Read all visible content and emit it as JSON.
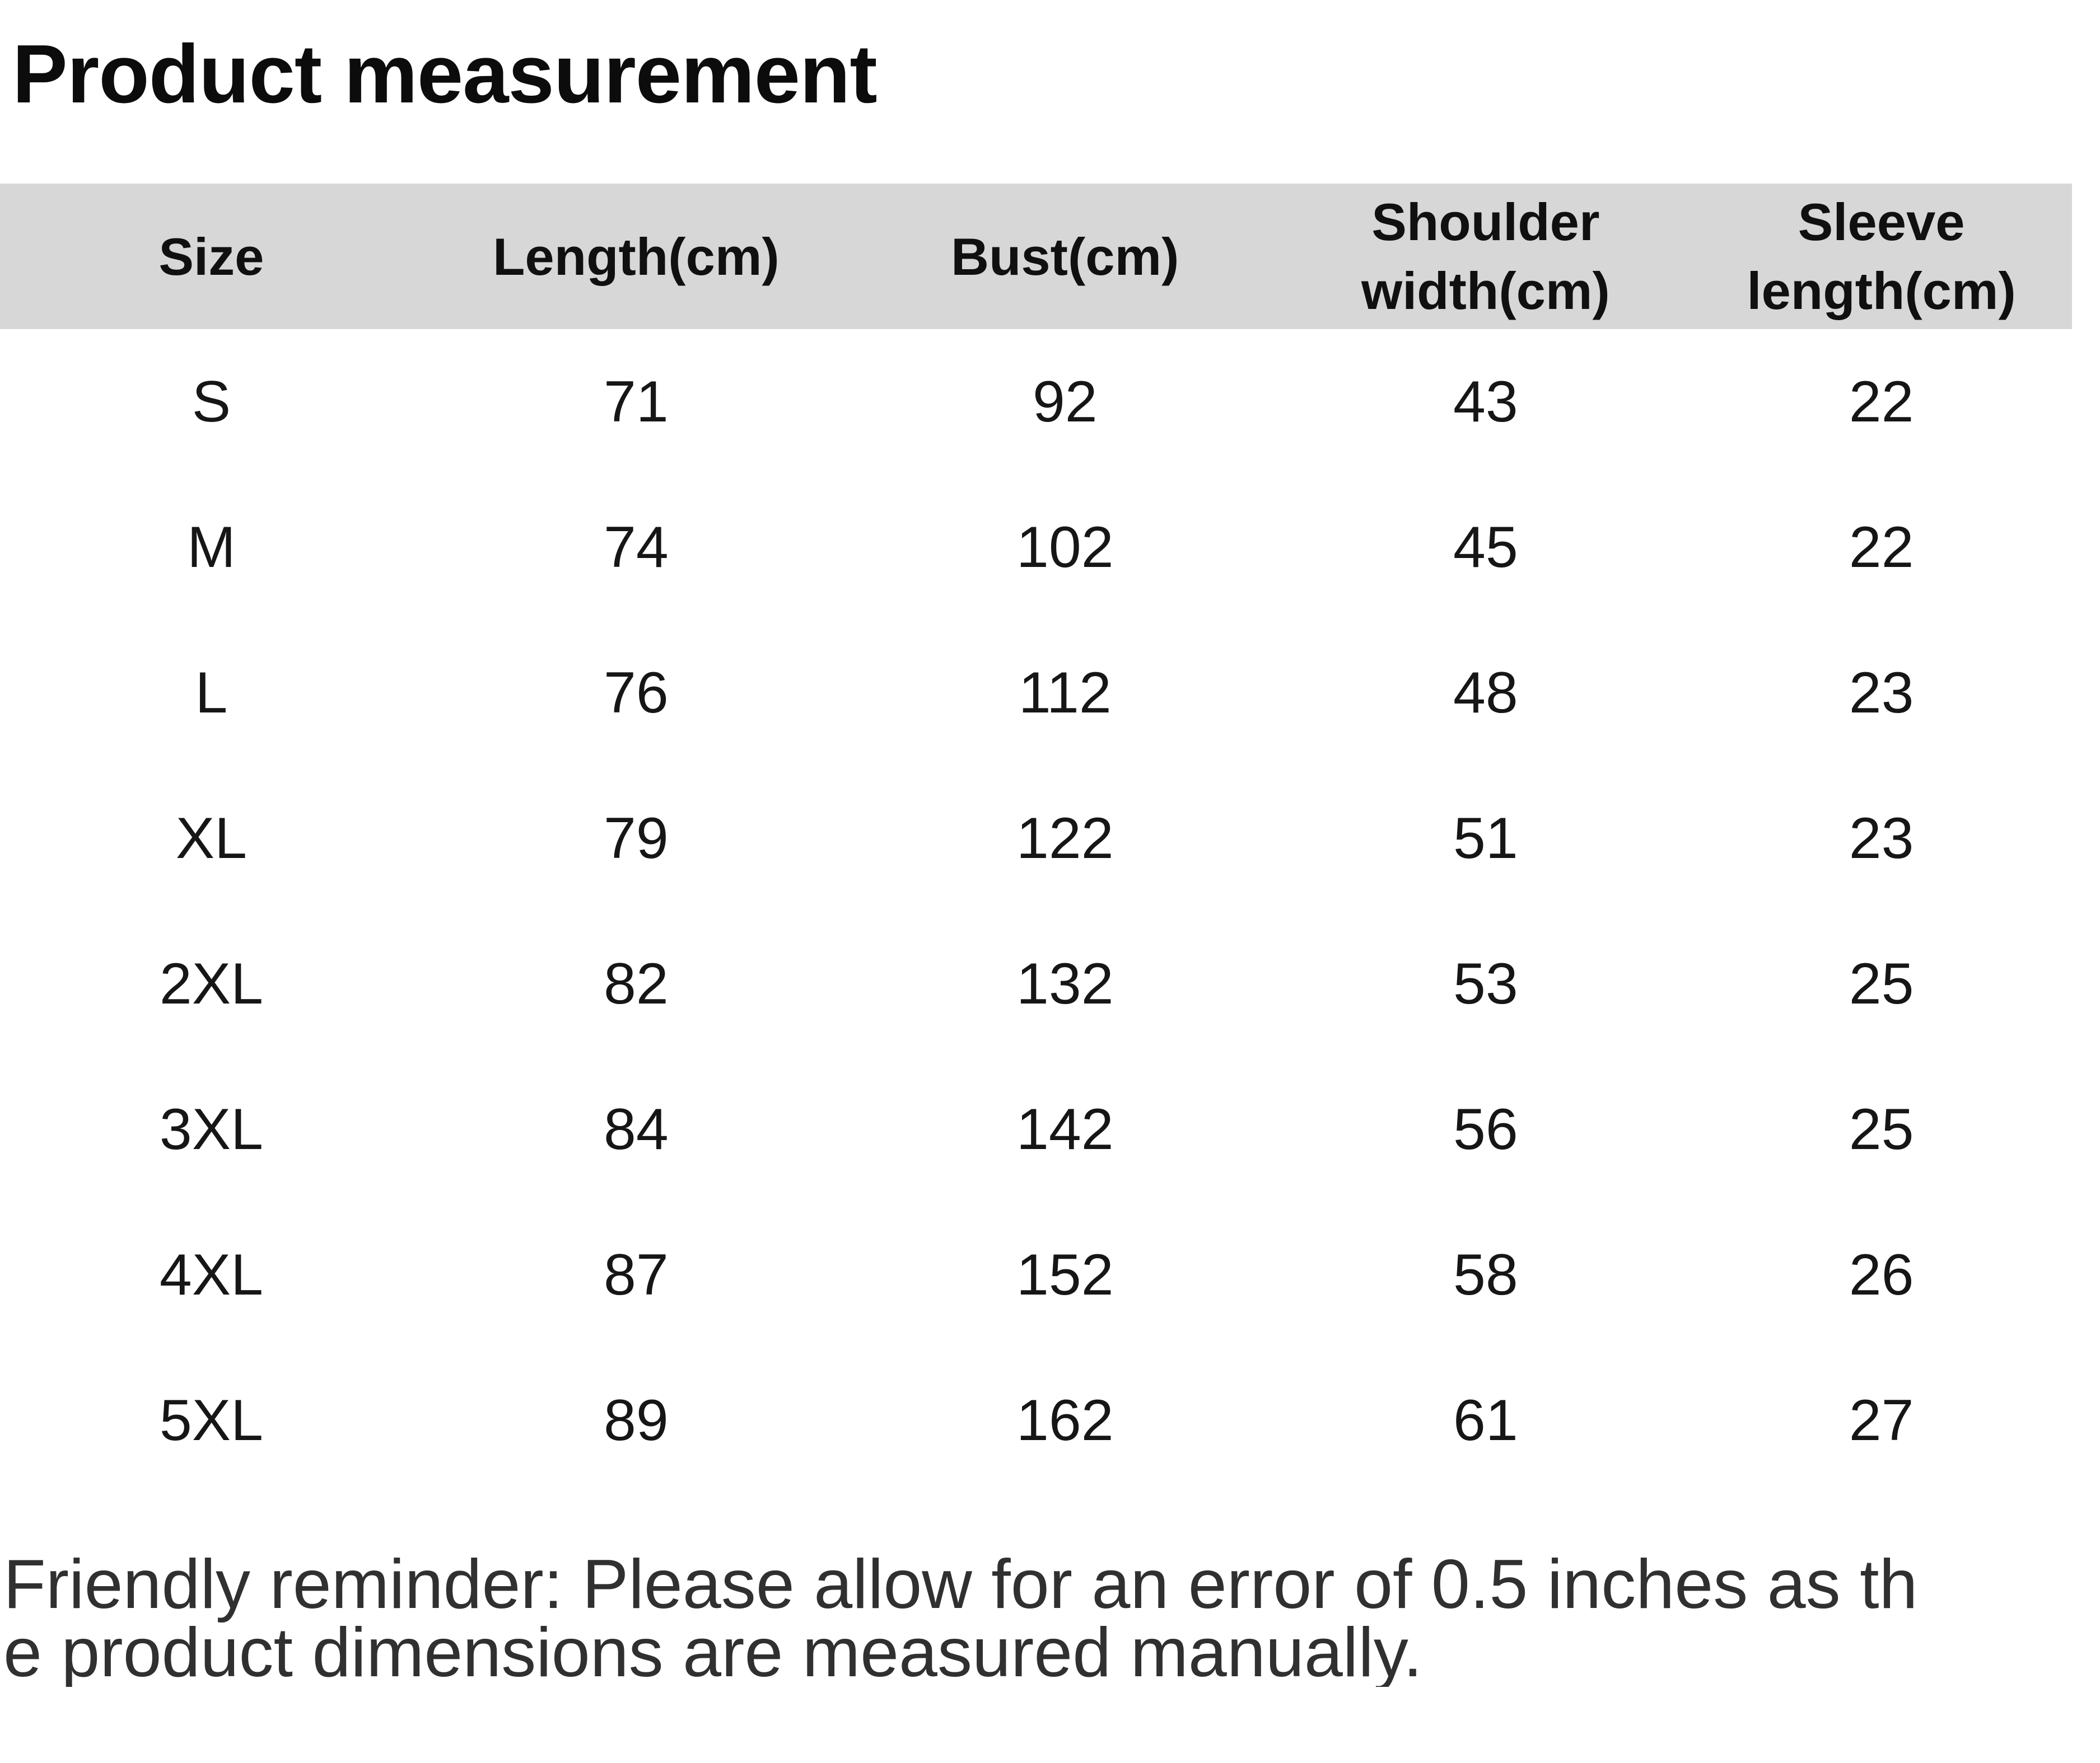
{
  "title": "Product measurement",
  "table": {
    "headers": [
      "Size",
      "Length(cm)",
      "Bust(cm)",
      "Shoulder\nwidth(cm)",
      "Sleeve\nlength(cm)"
    ],
    "rows": [
      [
        "S",
        "71",
        "92",
        "43",
        "22"
      ],
      [
        "M",
        "74",
        "102",
        "45",
        "22"
      ],
      [
        "L",
        "76",
        "112",
        "48",
        "23"
      ],
      [
        "XL",
        "79",
        "122",
        "51",
        "23"
      ],
      [
        "2XL",
        "82",
        "132",
        "53",
        "25"
      ],
      [
        "3XL",
        "84",
        "142",
        "56",
        "25"
      ],
      [
        "4XL",
        "87",
        "152",
        "58",
        "26"
      ],
      [
        "5XL",
        "89",
        "162",
        "61",
        "27"
      ]
    ]
  },
  "reminder": {
    "lines": [
      "Friendly reminder: Please allow for an error of 0.5 inches as th",
      "e product dimensions are measured manually."
    ]
  },
  "colors": {
    "header_row_bg": "#d6d7d6",
    "title_text": "#0c0c0c",
    "cell_text": "#161616",
    "reminder_text": "#303030",
    "page_bg": "#ffffff"
  },
  "chart_data": {
    "type": "table",
    "title": "Product measurement",
    "columns": [
      "Size",
      "Length(cm)",
      "Bust(cm)",
      "Shoulder width(cm)",
      "Sleeve length(cm)"
    ],
    "rows": [
      [
        "S",
        71,
        92,
        43,
        22
      ],
      [
        "M",
        74,
        102,
        45,
        22
      ],
      [
        "L",
        76,
        112,
        48,
        23
      ],
      [
        "XL",
        79,
        122,
        51,
        23
      ],
      [
        "2XL",
        82,
        132,
        53,
        25
      ],
      [
        "3XL",
        84,
        142,
        56,
        25
      ],
      [
        "4XL",
        87,
        152,
        58,
        26
      ],
      [
        "5XL",
        89,
        162,
        61,
        27
      ]
    ],
    "note": "Friendly reminder: Please allow for an error of 0.5 inches as the product dimensions are measured manually.",
    "legend_position": "none",
    "grid": false
  }
}
